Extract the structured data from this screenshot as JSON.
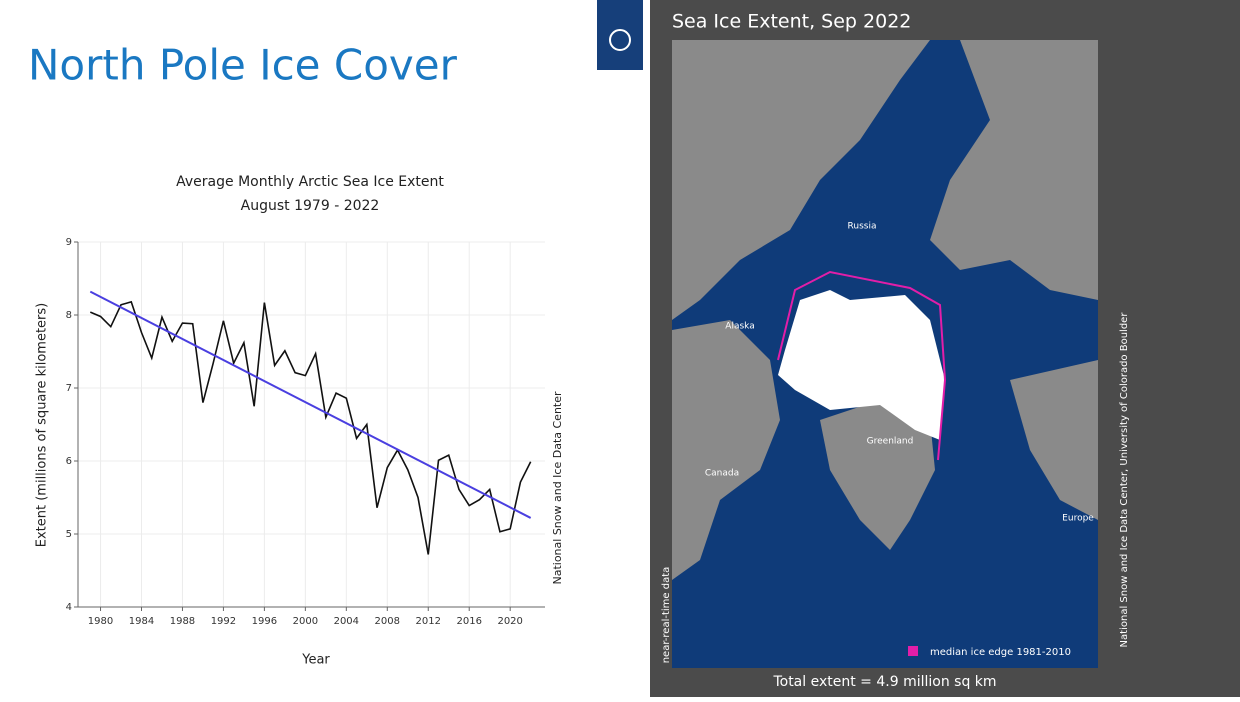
{
  "slide_title": "North Pole Ice Cover",
  "chart_data": {
    "type": "line",
    "title": "Average Monthly Arctic Sea Ice Extent",
    "subtitle": "August 1979 - 2022",
    "x_label": "Year",
    "y_label": "Extent (millions of square kilometers)",
    "source": "National Snow and Ice Data Center",
    "xlim": [
      1977.8,
      2023.4
    ],
    "xticks": [
      1980,
      1984,
      1988,
      1992,
      1996,
      2000,
      2004,
      2008,
      2012,
      2016,
      2020
    ],
    "ylim": [
      4,
      9
    ],
    "yticks": [
      4,
      5,
      6,
      7,
      8,
      9
    ],
    "grid": true,
    "series": [
      {
        "color": "#111111",
        "x": [
          1979,
          1980,
          1981,
          1982,
          1983,
          1984,
          1985,
          1986,
          1987,
          1988,
          1989,
          1990,
          1991,
          1992,
          1993,
          1994,
          1995,
          1996,
          1997,
          1998,
          1999,
          2000,
          2001,
          2002,
          2003,
          2004,
          2005,
          2006,
          2007,
          2008,
          2009,
          2010,
          2011,
          2012,
          2013,
          2014,
          2015,
          2016,
          2017,
          2018,
          2019,
          2020,
          2021,
          2022
        ],
        "values": [
          8.04,
          7.98,
          7.84,
          8.14,
          8.18,
          7.76,
          7.41,
          7.97,
          7.64,
          7.89,
          7.88,
          6.8,
          7.34,
          7.92,
          7.34,
          7.62,
          6.75,
          8.17,
          7.31,
          7.51,
          7.21,
          7.17,
          7.47,
          6.6,
          6.93,
          6.86,
          6.31,
          6.5,
          5.36,
          5.91,
          6.15,
          5.88,
          5.5,
          4.72,
          6.01,
          6.08,
          5.61,
          5.39,
          5.47,
          5.61,
          5.03,
          5.07,
          5.71,
          5.99
        ]
      },
      {
        "color": "#4a3fe0",
        "x": [
          1979,
          2022
        ],
        "values": [
          8.32,
          5.22
        ]
      }
    ]
  },
  "map": {
    "title": "Sea Ice Extent, Sep 2022",
    "labels": [
      "Russia",
      "Alaska",
      "Canada",
      "Greenland",
      "Europe"
    ],
    "legend": "median ice edge 1981-2010",
    "total": "Total extent = 4.9 million sq km",
    "note": "near-real-time data",
    "credit": "National Snow and Ice Data Center, University of Colorado Boulder"
  }
}
